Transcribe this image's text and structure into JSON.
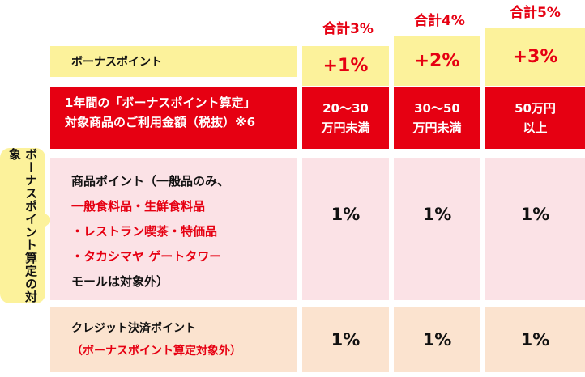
{
  "totals": [
    "合計3%",
    "合計4%",
    "合計5%"
  ],
  "bonus_row": {
    "label": "ボーナスポイント",
    "values": [
      "+1%",
      "+2%",
      "+3%"
    ]
  },
  "amount_row": {
    "label_line1": "1年間の「ボーナスポイント算定」",
    "label_line2": "対象商品のご利用金額（税抜）※6",
    "tiers": [
      {
        "line1": "20〜30",
        "line2": "万円未満"
      },
      {
        "line1": "30〜50",
        "line2": "万円未満"
      },
      {
        "line1": "50万円",
        "line2": "以上"
      }
    ]
  },
  "side_label": {
    "line1": "ボーナスポイント",
    "line2": "算定の対象"
  },
  "product_row": {
    "line1": "商品ポイント（一般品のみ、",
    "line2": "一般食料品・生鮮食料品",
    "line3": "・レストラン喫茶・特価品",
    "line4": "・タカシマヤ ゲートタワー",
    "line5": "モールは対象外）",
    "values": [
      "1%",
      "1%",
      "1%"
    ]
  },
  "credit_row": {
    "line1": "クレジット決済ポイント",
    "line2": "（ボーナスポイント算定対象外）",
    "values": [
      "1%",
      "1%",
      "1%"
    ]
  },
  "colors": {
    "accent_red": "#e60012",
    "yellow": "#fcf29b",
    "pink": "#fbe2e6",
    "peach": "#fbe3cf"
  }
}
